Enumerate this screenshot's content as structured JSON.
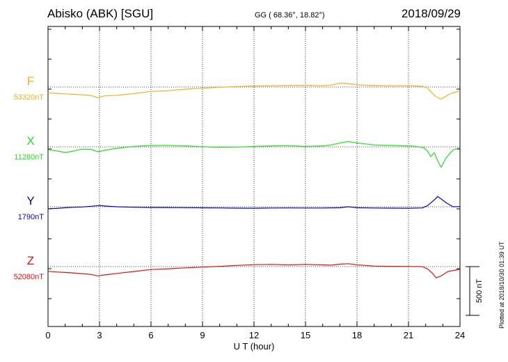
{
  "header": {
    "station": "Abisko (ABK)  [SGU]",
    "coords": "GG ( 68.36°,  18.82°)",
    "date": "2018/09/29"
  },
  "side_note": "Plotted at 2018/10/30 01:39 UT",
  "scale_label": "500 nT",
  "chart_data": {
    "type": "line",
    "xlabel": "U T (hour)",
    "xlim": [
      0,
      24
    ],
    "xticks": [
      "0",
      "3",
      "6",
      "9",
      "12",
      "15",
      "18",
      "21",
      "24"
    ],
    "scale_bar_nT": 500,
    "grid": true,
    "series": [
      {
        "name": "F",
        "baseline_label": "53320nT",
        "baseline_nT": 53320,
        "color": "#f0b020",
        "points": [
          [
            0,
            53261
          ],
          [
            0.5,
            53255
          ],
          [
            1,
            53250
          ],
          [
            1.5,
            53245
          ],
          [
            2,
            53240
          ],
          [
            2.5,
            53233
          ],
          [
            2.9,
            53210
          ],
          [
            3.3,
            53229
          ],
          [
            4,
            53236
          ],
          [
            5,
            53252
          ],
          [
            6,
            53275
          ],
          [
            7,
            53283
          ],
          [
            8,
            53298
          ],
          [
            9,
            53308
          ],
          [
            10,
            53317
          ],
          [
            11,
            53325
          ],
          [
            12,
            53330
          ],
          [
            13,
            53333
          ],
          [
            14,
            53335
          ],
          [
            15,
            53338
          ],
          [
            15.5,
            53335
          ],
          [
            16,
            53333
          ],
          [
            16.5,
            53340
          ],
          [
            17,
            53360
          ],
          [
            17.5,
            53355
          ],
          [
            18,
            53343
          ],
          [
            18.5,
            53338
          ],
          [
            19,
            53335
          ],
          [
            20,
            53333
          ],
          [
            21,
            53333
          ],
          [
            21.8,
            53328
          ],
          [
            22.1,
            53312
          ],
          [
            22.4,
            53255
          ],
          [
            22.6,
            53220
          ],
          [
            22.9,
            53195
          ],
          [
            23.3,
            53238
          ],
          [
            23.6,
            53262
          ],
          [
            24,
            53275
          ]
        ]
      },
      {
        "name": "X",
        "baseline_label": "11280nT",
        "baseline_nT": 11280,
        "color": "#20e020",
        "points": [
          [
            0,
            11250
          ],
          [
            0.5,
            11240
          ],
          [
            1,
            11222
          ],
          [
            1.5,
            11238
          ],
          [
            2,
            11258
          ],
          [
            2.5,
            11255
          ],
          [
            2.9,
            11230
          ],
          [
            3.3,
            11245
          ],
          [
            4,
            11265
          ],
          [
            5,
            11285
          ],
          [
            6,
            11294
          ],
          [
            7,
            11296
          ],
          [
            8,
            11290
          ],
          [
            9,
            11282
          ],
          [
            10,
            11276
          ],
          [
            11,
            11278
          ],
          [
            12,
            11284
          ],
          [
            13,
            11290
          ],
          [
            14,
            11293
          ],
          [
            15,
            11285
          ],
          [
            16,
            11290
          ],
          [
            16.5,
            11300
          ],
          [
            17,
            11320
          ],
          [
            17.5,
            11335
          ],
          [
            18,
            11320
          ],
          [
            18.5,
            11310
          ],
          [
            19,
            11300
          ],
          [
            20,
            11295
          ],
          [
            21,
            11290
          ],
          [
            21.5,
            11285
          ],
          [
            21.9,
            11270
          ],
          [
            22.1,
            11240
          ],
          [
            22.3,
            11180
          ],
          [
            22.5,
            11220
          ],
          [
            22.7,
            11140
          ],
          [
            22.9,
            11070
          ],
          [
            23.2,
            11170
          ],
          [
            23.6,
            11250
          ],
          [
            24,
            11270
          ]
        ]
      },
      {
        "name": "Y",
        "baseline_label": "1790nT",
        "baseline_nT": 1790,
        "color": "#0000d0",
        "points": [
          [
            0,
            1770
          ],
          [
            0.5,
            1773
          ],
          [
            1,
            1780
          ],
          [
            1.5,
            1785
          ],
          [
            2,
            1788
          ],
          [
            2.5,
            1795
          ],
          [
            3,
            1803
          ],
          [
            3.3,
            1798
          ],
          [
            4,
            1790
          ],
          [
            5,
            1785
          ],
          [
            6,
            1783
          ],
          [
            7,
            1782
          ],
          [
            8,
            1781
          ],
          [
            9,
            1779
          ],
          [
            10,
            1778
          ],
          [
            11,
            1776
          ],
          [
            12,
            1775
          ],
          [
            13,
            1777
          ],
          [
            14,
            1778
          ],
          [
            15,
            1777
          ],
          [
            16,
            1777
          ],
          [
            17,
            1780
          ],
          [
            17.5,
            1790
          ],
          [
            18,
            1780
          ],
          [
            19,
            1777
          ],
          [
            20,
            1776
          ],
          [
            21,
            1775
          ],
          [
            21.8,
            1778
          ],
          [
            22.1,
            1800
          ],
          [
            22.3,
            1830
          ],
          [
            22.5,
            1860
          ],
          [
            22.7,
            1895
          ],
          [
            22.9,
            1870
          ],
          [
            23.2,
            1830
          ],
          [
            23.6,
            1790
          ],
          [
            24,
            1792
          ]
        ]
      },
      {
        "name": "Z",
        "baseline_label": "52080nT",
        "baseline_nT": 52080,
        "color": "#e01010",
        "points": [
          [
            0,
            52032
          ],
          [
            0.5,
            52025
          ],
          [
            1,
            52020
          ],
          [
            1.5,
            52015
          ],
          [
            2,
            52008
          ],
          [
            2.5,
            52000
          ],
          [
            2.9,
            51985
          ],
          [
            3.3,
            51995
          ],
          [
            4,
            52010
          ],
          [
            5,
            52030
          ],
          [
            6,
            52050
          ],
          [
            7,
            52058
          ],
          [
            8,
            52067
          ],
          [
            9,
            52075
          ],
          [
            10,
            52083
          ],
          [
            11,
            52092
          ],
          [
            12,
            52100
          ],
          [
            13,
            52103
          ],
          [
            14,
            52098
          ],
          [
            15,
            52103
          ],
          [
            16,
            52098
          ],
          [
            16.5,
            52095
          ],
          [
            17,
            52105
          ],
          [
            17.5,
            52110
          ],
          [
            18,
            52098
          ],
          [
            18.5,
            52092
          ],
          [
            19,
            52086
          ],
          [
            20,
            52083
          ],
          [
            21,
            52082
          ],
          [
            21.8,
            52080
          ],
          [
            22.1,
            52058
          ],
          [
            22.4,
            52012
          ],
          [
            22.6,
            51965
          ],
          [
            22.9,
            51985
          ],
          [
            23.3,
            52030
          ],
          [
            23.6,
            52040
          ],
          [
            24,
            52052
          ]
        ]
      }
    ]
  }
}
